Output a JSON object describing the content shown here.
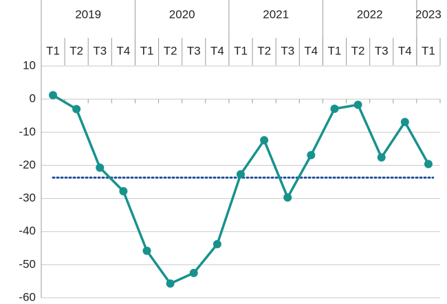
{
  "chart_data": {
    "type": "line",
    "groups": [
      {
        "label": "2019",
        "categories": [
          "T1",
          "T2",
          "T3",
          "T4"
        ]
      },
      {
        "label": "2020",
        "categories": [
          "T1",
          "T2",
          "T3",
          "T4"
        ]
      },
      {
        "label": "2021",
        "categories": [
          "T1",
          "T2",
          "T3",
          "T4"
        ]
      },
      {
        "label": "2022",
        "categories": [
          "T1",
          "T2",
          "T3",
          "T4"
        ]
      },
      {
        "label": "2023",
        "categories": [
          "T1"
        ]
      }
    ],
    "values": [
      1.2,
      -3,
      -20.7,
      -27.8,
      -45.8,
      -55.7,
      -52.5,
      -43.8,
      -22.7,
      -12.4,
      -29.7,
      -16.9,
      -2.9,
      -1.7,
      -17.6,
      -6.9,
      -19.6
    ],
    "color": "#17928d",
    "reference_line": {
      "value": -23.7,
      "color": "#1f4e9c",
      "style": "dotted"
    },
    "ylim": [
      -60,
      10
    ],
    "yticks": [
      -60,
      -50,
      -40,
      -30,
      -20,
      -10,
      0,
      10
    ],
    "grid": true
  }
}
